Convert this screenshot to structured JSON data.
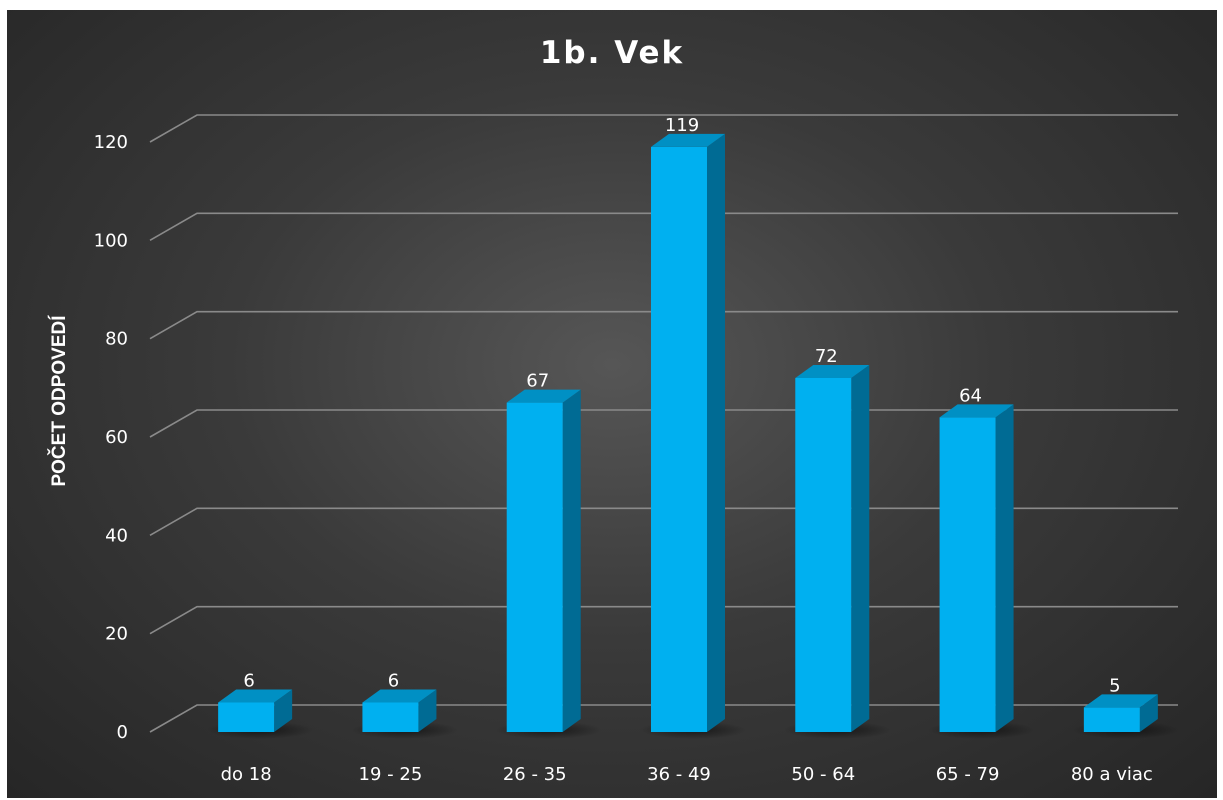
{
  "chart_data": {
    "type": "bar",
    "title": "1b. Vek",
    "xlabel": "",
    "ylabel": "POČET ODPOVEDÍ",
    "categories": [
      "do 18",
      "19 - 25",
      "26 - 35",
      "36 - 49",
      "50 - 64",
      "65 - 79",
      "80 a viac"
    ],
    "values": [
      6,
      6,
      67,
      119,
      72,
      64,
      5
    ],
    "value_labels": [
      "6",
      "6",
      "67",
      "119",
      "72",
      "64",
      "5"
    ],
    "ylim": [
      0,
      120
    ],
    "yticks": [
      "0",
      "20",
      "40",
      "60",
      "80",
      "100",
      "120"
    ],
    "grid": true,
    "legend": "none",
    "bar_colors": {
      "front": "#00b0f0",
      "side": "#006b94",
      "top": "#0090c4"
    },
    "background": "#3a3a3a"
  }
}
